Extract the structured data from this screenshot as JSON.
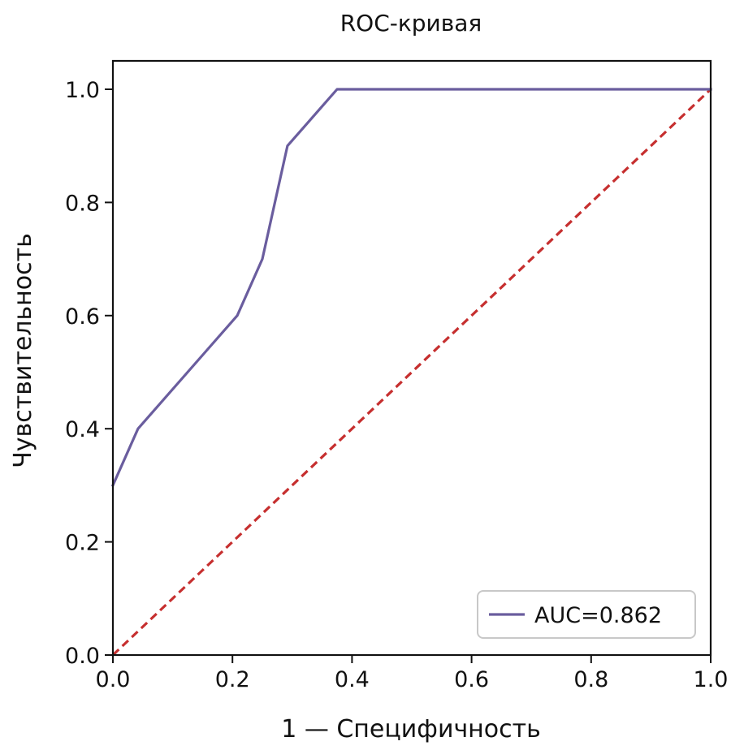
{
  "chart_data": {
    "type": "line",
    "title": "ROC-кривая",
    "xlabel": "1 — Специфичность",
    "ylabel": "Чувствительность",
    "xlim": [
      0.0,
      1.0
    ],
    "ylim": [
      0.0,
      1.0
    ],
    "xticks": [
      0.0,
      0.2,
      0.4,
      0.6,
      0.8,
      1.0
    ],
    "yticks": [
      0.0,
      0.2,
      0.4,
      0.6,
      0.8,
      1.0
    ],
    "xtick_labels": [
      "0.0",
      "0.2",
      "0.4",
      "0.6",
      "0.8",
      "1.0"
    ],
    "ytick_labels": [
      "0.0",
      "0.2",
      "0.4",
      "0.6",
      "0.8",
      "1.0"
    ],
    "grid": false,
    "legend_position": "bottom-right",
    "series": [
      {
        "name": "AUC=0.862",
        "color": "#6a5d9e",
        "style": "solid",
        "x": [
          0.0,
          0.042,
          0.208,
          0.25,
          0.292,
          0.375,
          1.0
        ],
        "y": [
          0.3,
          0.4,
          0.6,
          0.7,
          0.9,
          1.0,
          1.0
        ]
      }
    ],
    "reference_line": {
      "color": "#c62f2f",
      "style": "dashed",
      "x": [
        0.0,
        1.0
      ],
      "y": [
        0.0,
        1.0
      ]
    }
  }
}
